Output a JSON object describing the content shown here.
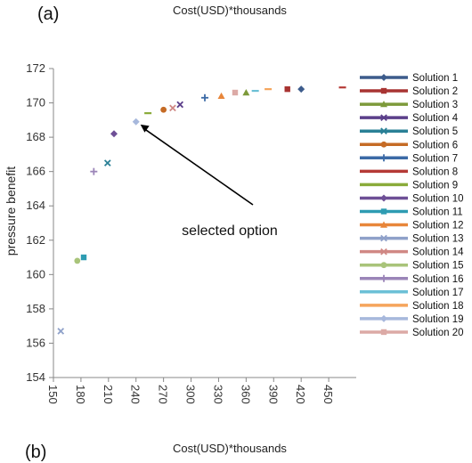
{
  "panel_a_label": "(a)",
  "panel_b_label": "(b)",
  "top_title": "Cost(USD)*thousands",
  "bottom_title": "Cost(USD)*thousands",
  "chart_data": {
    "type": "scatter",
    "title": "",
    "xlabel": "",
    "ylabel": "pressure benefit",
    "xlim": [
      150,
      480
    ],
    "ylim": [
      154,
      172
    ],
    "x_ticks": [
      150,
      180,
      210,
      240,
      270,
      300,
      330,
      360,
      390,
      420,
      450
    ],
    "y_ticks": [
      154,
      156,
      158,
      160,
      162,
      164,
      166,
      168,
      170,
      172
    ],
    "grid": false,
    "legend_position": "right",
    "annotation": {
      "text": "selected option",
      "points_to": [
        240,
        169
      ]
    },
    "series": [
      {
        "name": "Solution 1",
        "color": "#3d5c8c",
        "marker": "diamond",
        "points": [
          [
            420,
            170.8
          ]
        ]
      },
      {
        "name": "Solution 2",
        "color": "#a83432",
        "marker": "square",
        "points": [
          [
            405,
            170.8
          ]
        ]
      },
      {
        "name": "Solution 3",
        "color": "#7d9a3a",
        "marker": "triangle",
        "points": [
          [
            360,
            170.6
          ]
        ]
      },
      {
        "name": "Solution 4",
        "color": "#5b3f8a",
        "marker": "x",
        "points": [
          [
            288,
            169.9
          ]
        ]
      },
      {
        "name": "Solution 5",
        "color": "#2a8096",
        "marker": "x",
        "points": [
          [
            209,
            166.5
          ]
        ]
      },
      {
        "name": "Solution 6",
        "color": "#c56b25",
        "marker": "circle",
        "points": [
          [
            270,
            169.6
          ]
        ]
      },
      {
        "name": "Solution 7",
        "color": "#3b6aa6",
        "marker": "plus",
        "points": [
          [
            315,
            170.3
          ]
        ]
      },
      {
        "name": "Solution 8",
        "color": "#b53a36",
        "marker": "dash",
        "points": [
          [
            465,
            170.9
          ]
        ]
      },
      {
        "name": "Solution 9",
        "color": "#8aab3a",
        "marker": "dash",
        "points": [
          [
            253,
            169.4
          ]
        ]
      },
      {
        "name": "Solution 10",
        "color": "#6e4f96",
        "marker": "diamond",
        "points": [
          [
            216,
            168.2
          ]
        ]
      },
      {
        "name": "Solution 11",
        "color": "#2e9cb2",
        "marker": "square",
        "points": [
          [
            183,
            161.0
          ]
        ]
      },
      {
        "name": "Solution 12",
        "color": "#e8863a",
        "marker": "triangle",
        "points": [
          [
            333,
            170.4
          ]
        ]
      },
      {
        "name": "Solution 13",
        "color": "#8fa1c9",
        "marker": "x",
        "points": [
          [
            158,
            156.7
          ]
        ]
      },
      {
        "name": "Solution 14",
        "color": "#d08884",
        "marker": "x",
        "points": [
          [
            280,
            169.7
          ]
        ]
      },
      {
        "name": "Solution 15",
        "color": "#a9c47a",
        "marker": "circle",
        "points": [
          [
            176,
            160.8
          ]
        ]
      },
      {
        "name": "Solution 16",
        "color": "#9b85b8",
        "marker": "plus",
        "points": [
          [
            194,
            166.0
          ]
        ]
      },
      {
        "name": "Solution 17",
        "color": "#6cc0d6",
        "marker": "dash",
        "points": [
          [
            370,
            170.7
          ]
        ]
      },
      {
        "name": "Solution 18",
        "color": "#f5a55c",
        "marker": "dash",
        "points": [
          [
            384,
            170.8
          ]
        ]
      },
      {
        "name": "Solution 19",
        "color": "#a7b8dc",
        "marker": "diamond",
        "points": [
          [
            240,
            168.9
          ]
        ]
      },
      {
        "name": "Solution 20",
        "color": "#dcaaa6",
        "marker": "square",
        "points": [
          [
            348,
            170.6
          ]
        ]
      }
    ]
  }
}
